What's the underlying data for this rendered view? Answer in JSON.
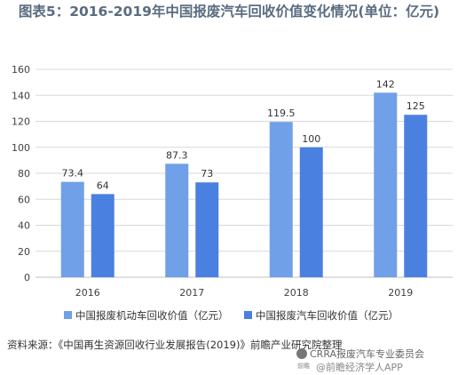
{
  "chart_data": {
    "type": "bar",
    "title": "图表5：2016-2019年中国报废汽车回收价值变化情况(单位：亿元)",
    "categories": [
      "2016",
      "2017",
      "2018",
      "2019"
    ],
    "series": [
      {
        "name": "中国报废机动车回收价值（亿元）",
        "values": [
          73.4,
          87.3,
          119.5,
          142
        ],
        "color": "#6fa0e8"
      },
      {
        "name": "中国报废汽车回收价值（亿元）",
        "values": [
          64,
          73,
          100,
          125
        ],
        "color": "#4a80e0"
      }
    ],
    "yticks": [
      "0",
      "20",
      "40",
      "60",
      "80",
      "100",
      "120",
      "140",
      "160"
    ],
    "data_labels": [
      [
        "73.4",
        "87.3",
        "119.5",
        "142"
      ],
      [
        "64",
        "73",
        "100",
        "125"
      ]
    ],
    "ylim": [
      0,
      160
    ],
    "grid": true,
    "legend_position": "bottom"
  },
  "source": "资料来源：《中国再生资源回收行业发展报告(2019)》前瞻产业研究院整理",
  "watermarks": {
    "wechat": "CRRA报废汽车专业委员会",
    "site": "@前瞻经济学人APP",
    "logo": "前瞻"
  }
}
